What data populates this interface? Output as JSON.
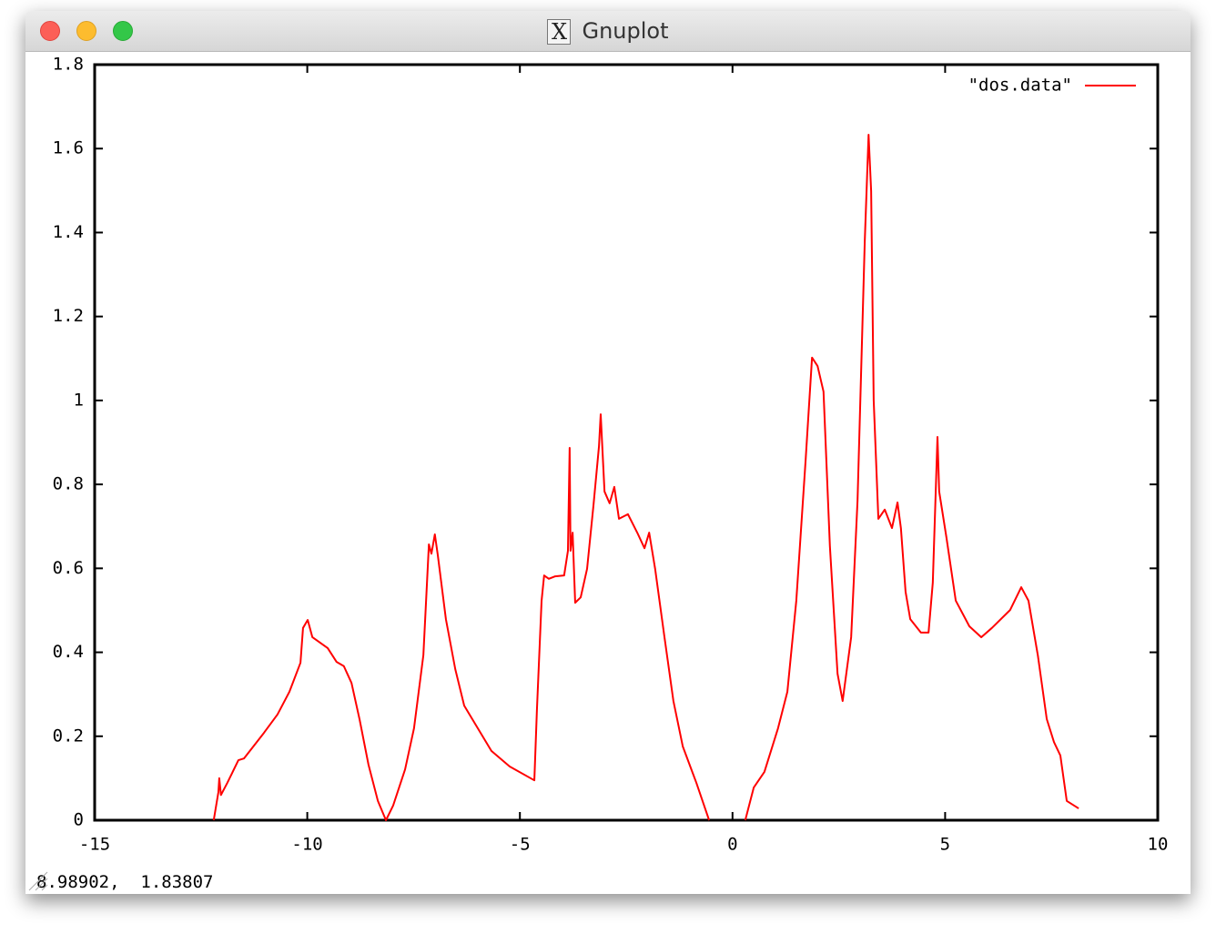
{
  "window": {
    "title": "Gnuplot",
    "status": "8.98902,  1.83807"
  },
  "chart_data": {
    "type": "line",
    "x": [
      -12.2,
      -12.09,
      -12.07,
      -12.03,
      -11.88,
      -11.62,
      -11.49,
      -11.02,
      -10.7,
      -10.42,
      -10.16,
      -10.1,
      -9.99,
      -9.88,
      -9.52,
      -9.31,
      -9.14,
      -8.96,
      -8.77,
      -8.56,
      -8.34,
      -8.15,
      -7.98,
      -7.7,
      -7.49,
      -7.27,
      -7.14,
      -7.08,
      -7.0,
      -6.93,
      -6.74,
      -6.52,
      -6.31,
      -5.99,
      -5.67,
      -5.24,
      -4.66,
      -4.6,
      -4.49,
      -4.43,
      -4.32,
      -4.17,
      -3.96,
      -3.87,
      -3.83,
      -3.81,
      -3.76,
      -3.7,
      -3.57,
      -3.42,
      -3.27,
      -3.14,
      -3.1,
      -3.01,
      -2.89,
      -2.78,
      -2.67,
      -2.46,
      -2.24,
      -2.07,
      -1.96,
      -1.82,
      -1.6,
      -1.39,
      -1.17,
      -0.85,
      -0.55,
      0.0,
      0.3,
      0.5,
      0.75,
      1.07,
      1.29,
      1.5,
      1.72,
      1.87,
      2.0,
      2.14,
      2.29,
      2.47,
      2.59,
      2.79,
      2.94,
      3.11,
      3.2,
      3.26,
      3.32,
      3.43,
      3.58,
      3.75,
      3.88,
      3.96,
      4.07,
      4.18,
      4.43,
      4.61,
      4.71,
      4.82,
      4.86,
      5.03,
      5.25,
      5.57,
      5.85,
      6.1,
      6.53,
      6.79,
      6.96,
      7.18,
      7.39,
      7.56,
      7.71,
      7.86,
      8.14
    ],
    "series": [
      {
        "name": "\"dos.data\"",
        "color": "#ff0000",
        "values": [
          0,
          0.067,
          0.1,
          0.06,
          0.089,
          0.143,
          0.147,
          0.208,
          0.252,
          0.306,
          0.375,
          0.458,
          0.477,
          0.436,
          0.41,
          0.377,
          0.367,
          0.327,
          0.24,
          0.132,
          0.046,
          0,
          0.035,
          0.121,
          0.219,
          0.393,
          0.657,
          0.635,
          0.681,
          0.631,
          0.479,
          0.36,
          0.273,
          0.219,
          0.165,
          0.128,
          0.095,
          0.262,
          0.523,
          0.583,
          0.575,
          0.581,
          0.583,
          0.642,
          0.887,
          0.642,
          0.685,
          0.518,
          0.531,
          0.599,
          0.75,
          0.891,
          0.967,
          0.783,
          0.755,
          0.794,
          0.718,
          0.729,
          0.685,
          0.648,
          0.685,
          0.599,
          0.436,
          0.284,
          0.176,
          0.089,
          0,
          null,
          0,
          0.078,
          0.115,
          0.219,
          0.306,
          0.523,
          0.859,
          1.102,
          1.082,
          1.021,
          0.653,
          0.349,
          0.284,
          0.436,
          0.761,
          1.379,
          1.633,
          1.499,
          1.0,
          0.718,
          0.74,
          0.696,
          0.757,
          0.696,
          0.544,
          0.479,
          0.447,
          0.447,
          0.566,
          0.913,
          0.783,
          0.674,
          0.523,
          0.462,
          0.436,
          0.458,
          0.501,
          0.555,
          0.523,
          0.393,
          0.241,
          0.186,
          0.154,
          0.046,
          0.028
        ]
      }
    ],
    "xlim": [
      -15,
      10
    ],
    "xticks": [
      -15,
      -10,
      -5,
      0,
      5,
      10
    ],
    "ylim": [
      0,
      1.8
    ],
    "yticks": [
      0,
      0.2,
      0.4,
      0.6,
      0.8,
      1,
      1.2,
      1.4,
      1.6,
      1.8
    ],
    "legend": "top-right",
    "grid": false
  }
}
